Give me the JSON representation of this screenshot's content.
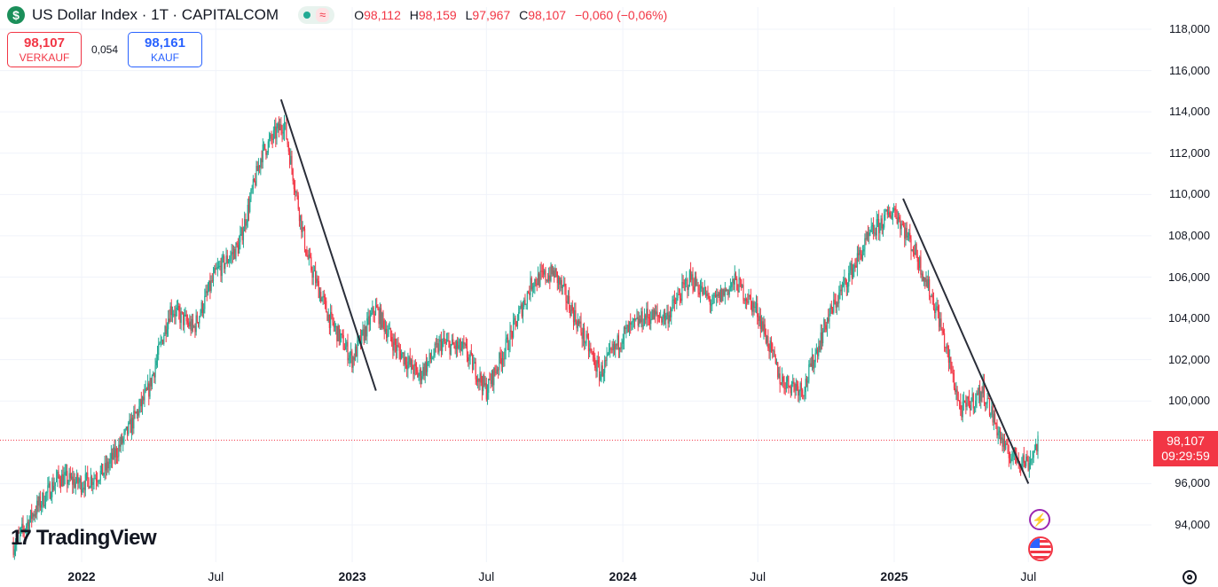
{
  "header": {
    "symbol_icon": "dollar-icon",
    "title": "US Dollar Index · 1T · CAPITALCOM",
    "wave_symbol": "≈",
    "ohlc": {
      "o_label": "O",
      "o": "98,112",
      "h_label": "H",
      "h": "98,159",
      "l_label": "L",
      "l": "97,967",
      "c_label": "C",
      "c": "98,107",
      "change": "−0,060 (−0,06%)"
    }
  },
  "trade": {
    "sell_price": "98,107",
    "sell_label": "VERKAUF",
    "spread": "0,054",
    "buy_price": "98,161",
    "buy_label": "KAUF"
  },
  "price_tag": {
    "price": "98,107",
    "countdown": "09:29:59"
  },
  "branding": {
    "logo_mark": "17",
    "name": "TradingView"
  },
  "colors": {
    "up": "#22ab94",
    "down": "#f23645",
    "grid": "#f0f3fa",
    "trendline": "#2a2e39",
    "buy": "#2962ff"
  },
  "chart_data": {
    "type": "candlestick",
    "title": "US Dollar Index · 1T · CAPITALCOM",
    "ylim": [
      92000,
      118500
    ],
    "y_ticks": [
      {
        "value": 118000,
        "label": "118,000"
      },
      {
        "value": 116000,
        "label": "116,000"
      },
      {
        "value": 114000,
        "label": "114,000"
      },
      {
        "value": 112000,
        "label": "112,000"
      },
      {
        "value": 110000,
        "label": "110,000"
      },
      {
        "value": 108000,
        "label": "108,000"
      },
      {
        "value": 106000,
        "label": "106,000"
      },
      {
        "value": 104000,
        "label": "104,000"
      },
      {
        "value": 102000,
        "label": "102,000"
      },
      {
        "value": 100000,
        "label": "100,000"
      },
      {
        "value": 96000,
        "label": "96,000"
      },
      {
        "value": 94000,
        "label": "94,000"
      }
    ],
    "x_ticks": [
      {
        "date": "2022-01",
        "label": "2022",
        "bold": true
      },
      {
        "date": "2022-07",
        "label": "Jul",
        "bold": false
      },
      {
        "date": "2023-01",
        "label": "2023",
        "bold": true
      },
      {
        "date": "2023-07",
        "label": "Jul",
        "bold": false
      },
      {
        "date": "2024-01",
        "label": "2024",
        "bold": true
      },
      {
        "date": "2024-07",
        "label": "Jul",
        "bold": false
      },
      {
        "date": "2025-01",
        "label": "2025",
        "bold": true
      },
      {
        "date": "2025-07",
        "label": "Jul",
        "bold": false
      }
    ],
    "x_range": [
      "2021-10",
      "2025-11"
    ],
    "last_price": 98107,
    "price_path": [
      [
        "2021-10",
        93000
      ],
      [
        "2021-11",
        94800
      ],
      [
        "2021-12",
        96300
      ],
      [
        "2022-01",
        96000
      ],
      [
        "2022-02",
        96600
      ],
      [
        "2022-03",
        98300
      ],
      [
        "2022-04",
        100500
      ],
      [
        "2022-05",
        104500
      ],
      [
        "2022-06",
        103500
      ],
      [
        "2022-07",
        106200
      ],
      [
        "2022-08",
        107500
      ],
      [
        "2022-09",
        112000
      ],
      [
        "2022-10",
        113500
      ],
      [
        "2022-11",
        107000
      ],
      [
        "2022-12",
        104000
      ],
      [
        "2023-01",
        102000
      ],
      [
        "2023-02",
        104500
      ],
      [
        "2023-03",
        102600
      ],
      [
        "2023-04",
        101200
      ],
      [
        "2023-05",
        102800
      ],
      [
        "2023-06",
        102500
      ],
      [
        "2023-07",
        100500
      ],
      [
        "2023-08",
        103000
      ],
      [
        "2023-09",
        105800
      ],
      [
        "2023-10",
        106200
      ],
      [
        "2023-11",
        103800
      ],
      [
        "2023-12",
        101300
      ],
      [
        "2024-01",
        103200
      ],
      [
        "2024-02",
        104100
      ],
      [
        "2024-03",
        104100
      ],
      [
        "2024-04",
        106000
      ],
      [
        "2024-05",
        104700
      ],
      [
        "2024-06",
        105800
      ],
      [
        "2024-07",
        104300
      ],
      [
        "2024-08",
        101000
      ],
      [
        "2024-09",
        100600
      ],
      [
        "2024-10",
        103800
      ],
      [
        "2024-11",
        106100
      ],
      [
        "2024-12",
        108100
      ],
      [
        "2025-01",
        109300
      ],
      [
        "2025-02",
        107000
      ],
      [
        "2025-03",
        104200
      ],
      [
        "2025-04",
        99500
      ],
      [
        "2025-05",
        100500
      ],
      [
        "2025-06",
        97500
      ],
      [
        "2025-07",
        97000
      ],
      [
        "2025-07-15",
        98107
      ]
    ],
    "trendlines": [
      {
        "from": [
          "2022-09-27",
          114600
        ],
        "to": [
          "2023-02-02",
          100500
        ]
      },
      {
        "from": [
          "2025-01-13",
          109800
        ],
        "to": [
          "2025-07-01",
          96000
        ]
      }
    ],
    "grid": true
  }
}
